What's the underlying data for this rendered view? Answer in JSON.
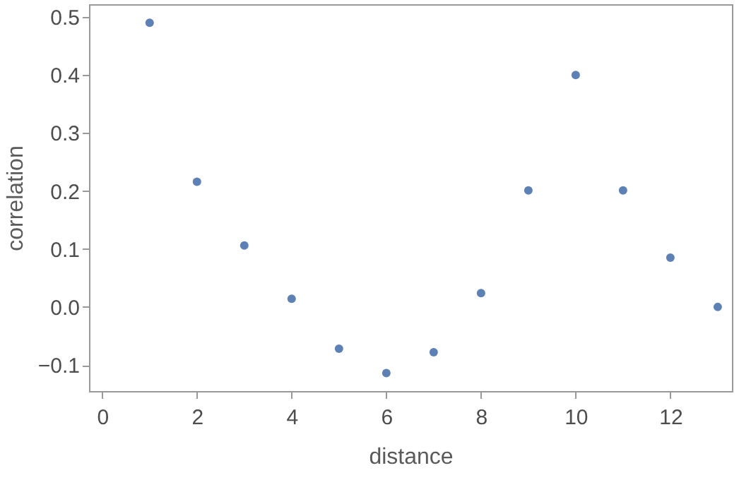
{
  "chart_data": {
    "type": "scatter",
    "xlabel": "distance",
    "ylabel": "correlation",
    "x": [
      1,
      2,
      3,
      4,
      5,
      6,
      7,
      8,
      9,
      10,
      11,
      12,
      13
    ],
    "series": [
      {
        "color": "#5e81b5",
        "values": [
          0.49,
          0.216,
          0.106,
          0.014,
          -0.072,
          -0.114,
          -0.078,
          0.024,
          0.201,
          0.4,
          0.201,
          0.085,
          0.0
        ]
      }
    ],
    "xlim": [
      -0.28,
      13.3
    ],
    "xticks": [
      0,
      2,
      4,
      6,
      8,
      10,
      12
    ],
    "ylim": [
      -0.145,
      0.522
    ],
    "yticks": [
      {
        "value": -0.1,
        "label": "−0.1"
      },
      {
        "value": 0,
        "label": "0.0"
      },
      {
        "value": 0.1,
        "label": "0.1"
      },
      {
        "value": 0.2,
        "label": "0.2"
      },
      {
        "value": 0.3,
        "label": "0.3"
      },
      {
        "value": 0.4,
        "label": "0.4"
      },
      {
        "value": 0.5,
        "label": "0.5"
      }
    ],
    "grid": false,
    "legend": false,
    "marker": "circle"
  }
}
